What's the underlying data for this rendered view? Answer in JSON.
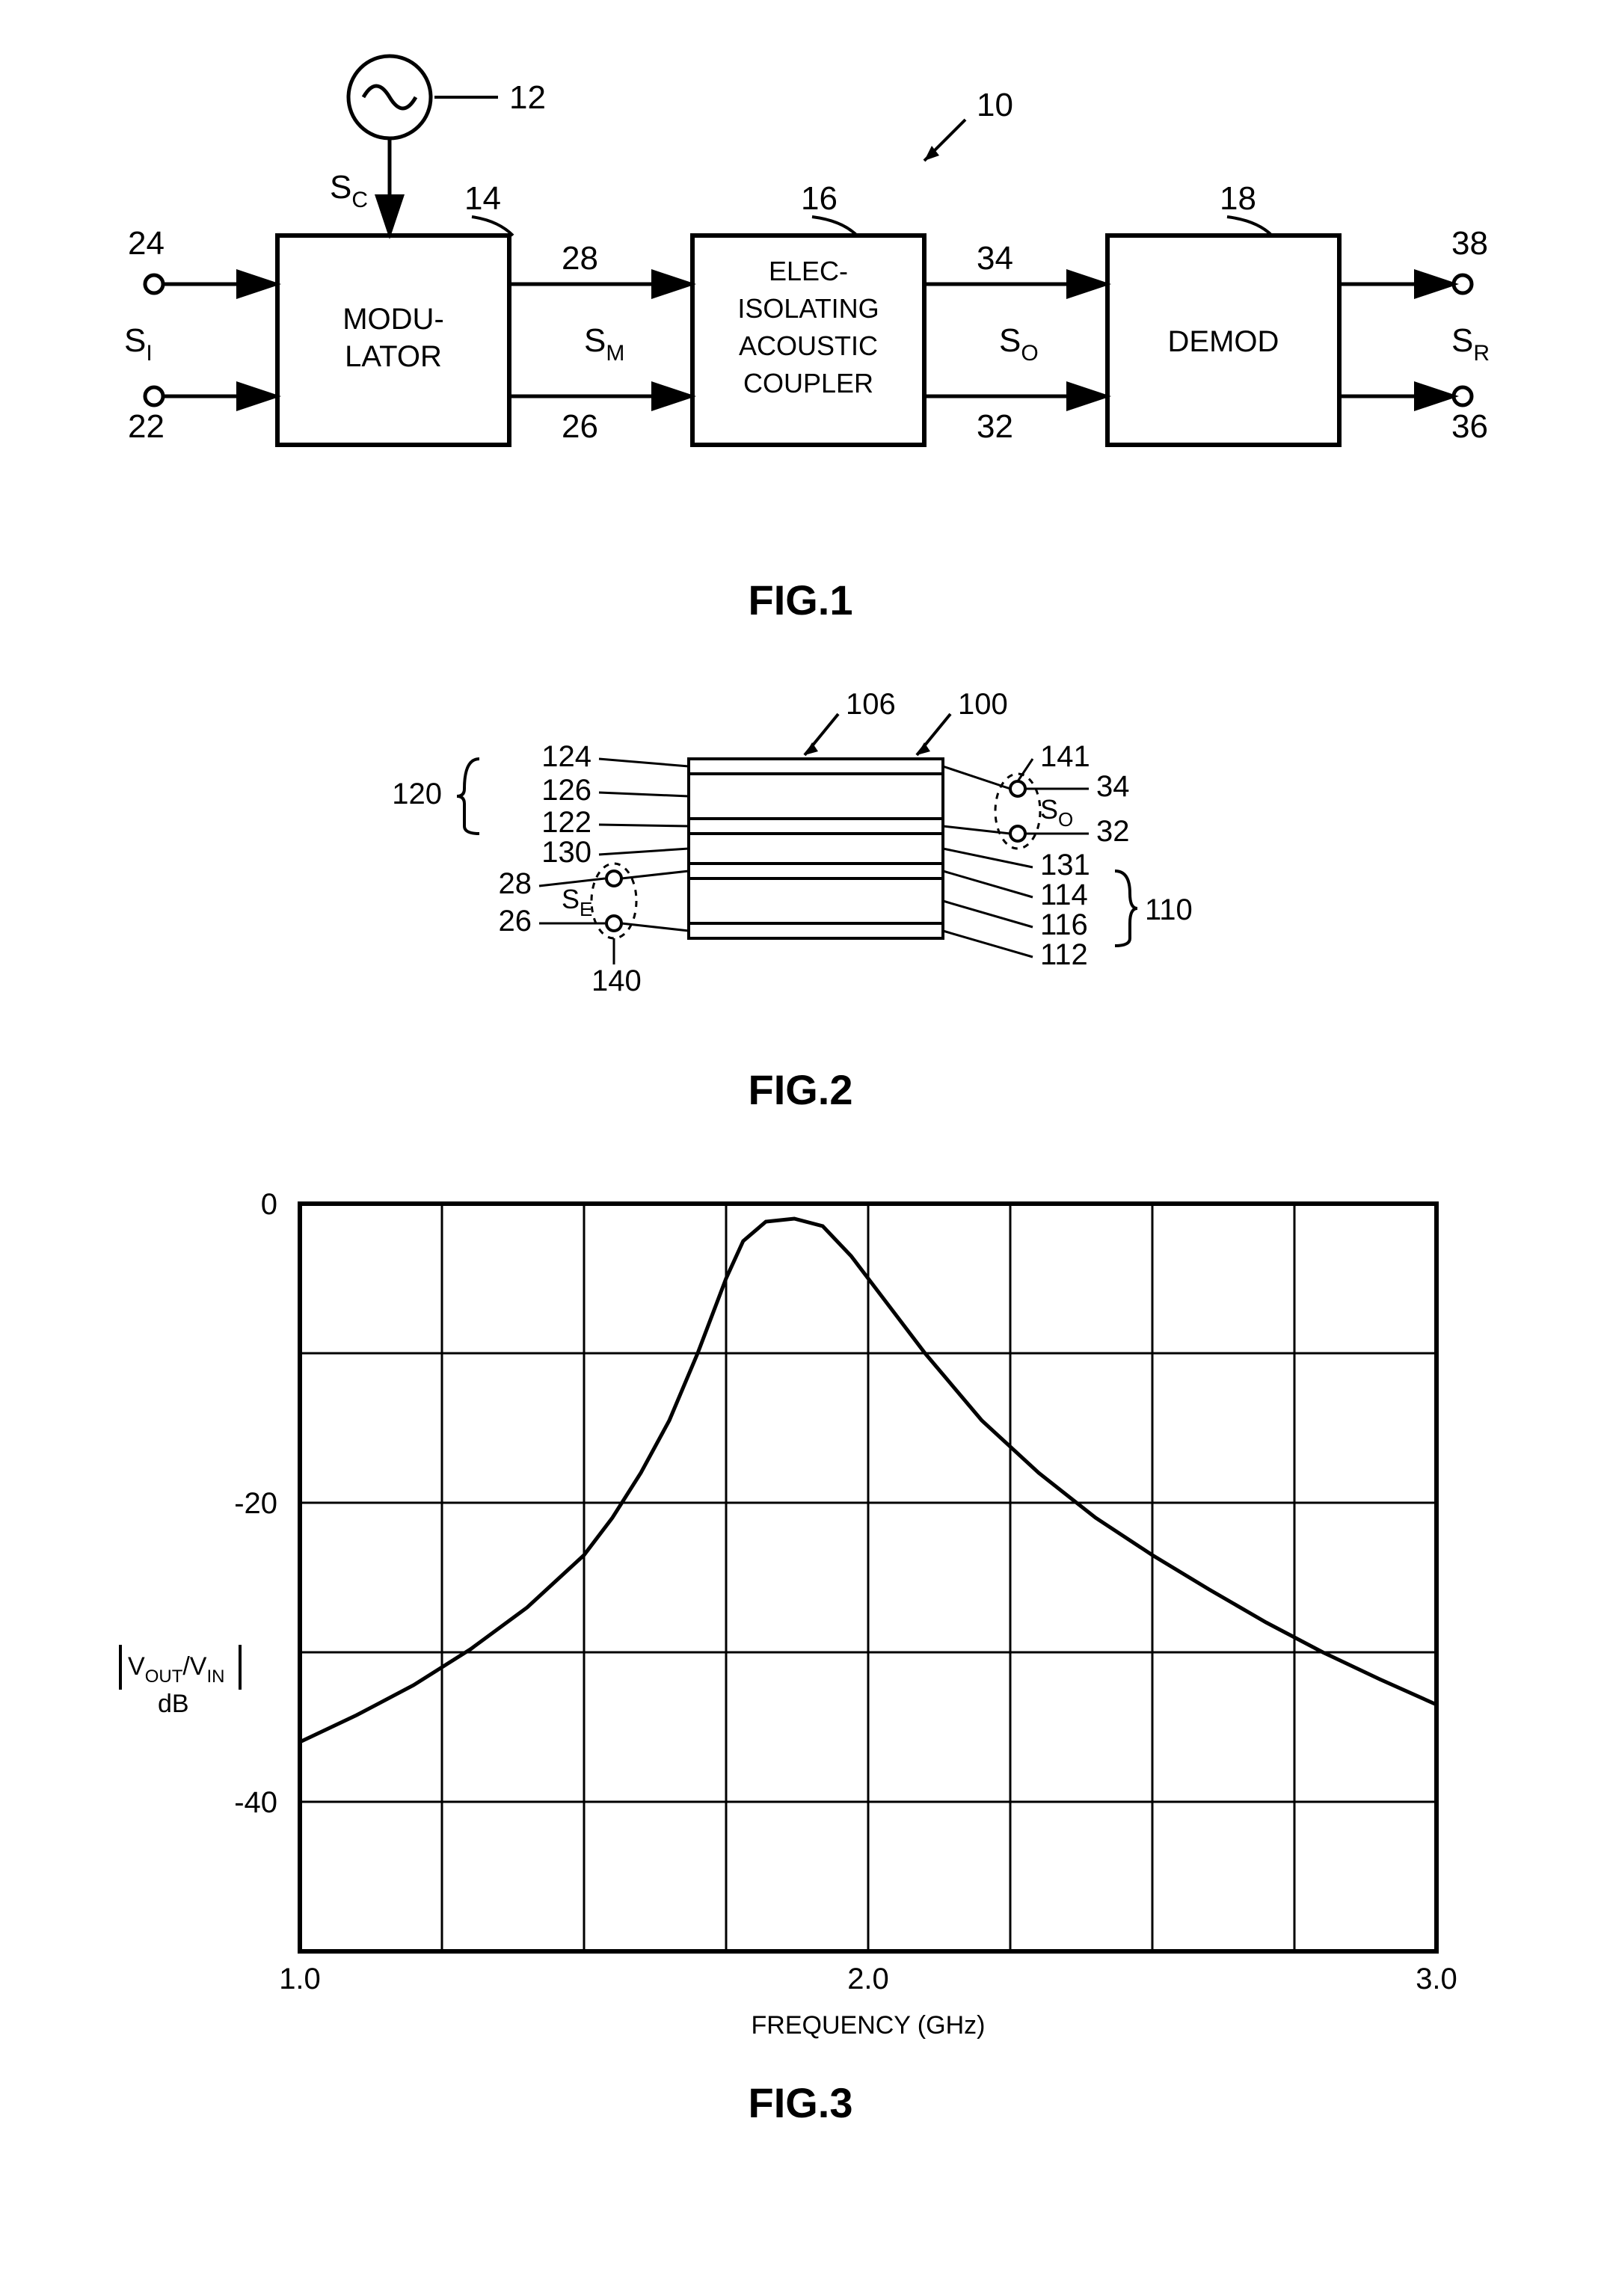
{
  "fig1": {
    "title": "FIG.1",
    "oscillator_label": "12",
    "system_label": "10",
    "sc_label": "S",
    "sc_sub": "C",
    "modulator_ref": "14",
    "modulator_text1": "MODU-",
    "modulator_text2": "LATOR",
    "coupler_ref": "16",
    "coupler_text1": "ELEC-",
    "coupler_text2": "ISOLATING",
    "coupler_text3": "ACOUSTIC",
    "coupler_text4": "COUPLER",
    "demod_ref": "18",
    "demod_text": "DEMOD",
    "input_top": "24",
    "input_bot": "22",
    "si_label": "S",
    "si_sub": "I",
    "mid_top": "28",
    "mid_bot": "26",
    "sm_label": "S",
    "sm_sub": "M",
    "out_top": "34",
    "out_bot": "32",
    "so_label": "S",
    "so_sub": "O",
    "final_top": "38",
    "final_bot": "36",
    "sr_label": "S",
    "sr_sub": "R",
    "colors": {
      "line": "#000000",
      "bg": "#ffffff"
    }
  },
  "fig2": {
    "title": "FIG.2",
    "labels": {
      "l120": "120",
      "l124": "124",
      "l126": "126",
      "l122": "122",
      "l130": "130",
      "l28": "28",
      "l26": "26",
      "l140": "140",
      "l106": "106",
      "l100": "100",
      "l141": "141",
      "l34": "34",
      "l32": "32",
      "l131": "131",
      "l114": "114",
      "l116": "116",
      "l112": "112",
      "l110": "110",
      "se": "S",
      "se_sub": "E",
      "so": "S",
      "so_sub": "O"
    }
  },
  "fig3": {
    "title": "FIG.3",
    "type": "line",
    "xlabel": "FREQUENCY (GHz)",
    "ylabel_top": "V",
    "ylabel_top_sub": "OUT",
    "ylabel_mid": "/V",
    "ylabel_mid_sub": "IN",
    "ylabel_unit": "dB",
    "xlim": [
      1.0,
      3.0
    ],
    "ylim": [
      -50,
      0
    ],
    "xticks": [
      1.0,
      2.0,
      3.0
    ],
    "yticks": [
      0,
      -20,
      -40
    ],
    "grid_x_step": 0.25,
    "grid_y_step": 10,
    "colors": {
      "line": "#000000",
      "grid": "#000000",
      "bg": "#ffffff"
    },
    "line_width": 5,
    "label_fontsize": 34,
    "tick_fontsize": 40,
    "curve": [
      [
        1.0,
        -36
      ],
      [
        1.1,
        -34.2
      ],
      [
        1.2,
        -32.2
      ],
      [
        1.25,
        -31
      ],
      [
        1.3,
        -29.8
      ],
      [
        1.4,
        -27
      ],
      [
        1.5,
        -23.5
      ],
      [
        1.55,
        -21
      ],
      [
        1.6,
        -18
      ],
      [
        1.65,
        -14.5
      ],
      [
        1.7,
        -10
      ],
      [
        1.75,
        -5
      ],
      [
        1.78,
        -2.5
      ],
      [
        1.82,
        -1.2
      ],
      [
        1.87,
        -1.0
      ],
      [
        1.92,
        -1.5
      ],
      [
        1.97,
        -3.5
      ],
      [
        2.0,
        -5
      ],
      [
        2.05,
        -7.5
      ],
      [
        2.1,
        -10
      ],
      [
        2.2,
        -14.5
      ],
      [
        2.3,
        -18
      ],
      [
        2.4,
        -21
      ],
      [
        2.5,
        -23.5
      ],
      [
        2.6,
        -25.8
      ],
      [
        2.7,
        -28
      ],
      [
        2.8,
        -30
      ],
      [
        2.9,
        -31.8
      ],
      [
        3.0,
        -33.5
      ]
    ]
  }
}
